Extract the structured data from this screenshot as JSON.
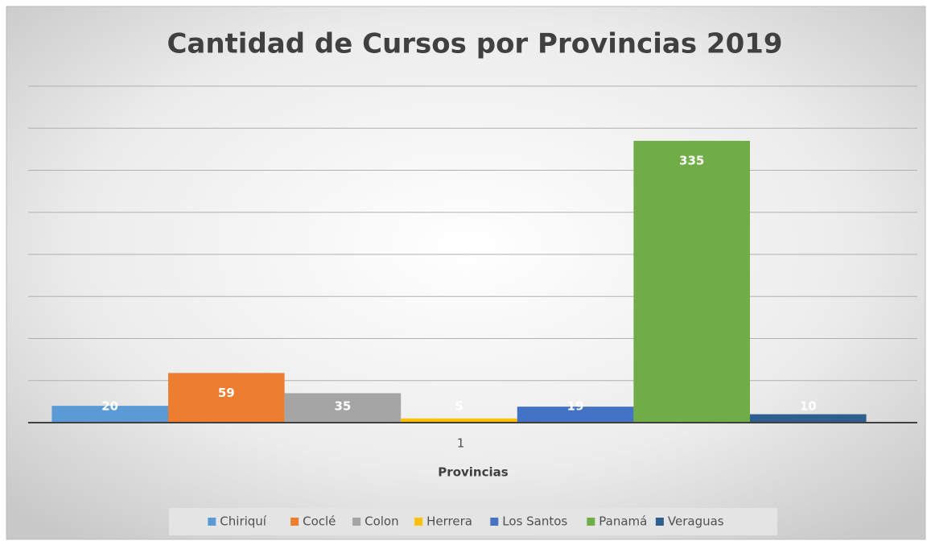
{
  "chart_data": {
    "type": "bar",
    "title": "Cantidad de Cursos por Provincias 2019",
    "categories": [
      "1"
    ],
    "xlabel": "Provincias",
    "series": [
      {
        "name": "Chiriquí",
        "color": "#5b9bd5",
        "values": [
          20
        ]
      },
      {
        "name": "Coclé",
        "color": "#ed7d31",
        "values": [
          59
        ]
      },
      {
        "name": "Colon",
        "color": "#a5a5a5",
        "values": [
          35
        ]
      },
      {
        "name": "Herrera",
        "color": "#ffc000",
        "values": [
          5
        ]
      },
      {
        "name": "Los Santos",
        "color": "#4472c4",
        "values": [
          19
        ]
      },
      {
        "name": "Panamá",
        "color": "#70ad47",
        "values": [
          335
        ]
      },
      {
        "name": "Veraguas",
        "color": "#2e5f8f",
        "values": [
          10
        ]
      }
    ],
    "ylim": [
      0,
      400
    ],
    "yticks": [
      0,
      50,
      100,
      150,
      200,
      250,
      300,
      350,
      400
    ],
    "grid": true,
    "legend": "bottom"
  }
}
